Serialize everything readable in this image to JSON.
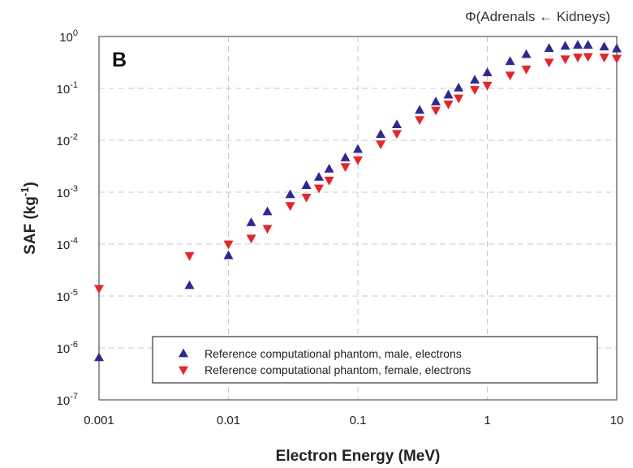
{
  "chart_data": {
    "type": "scatter",
    "title": "Φ(Adrenals ← Kidneys)",
    "panel_label": "B",
    "xlabel": "Electron Energy (MeV)",
    "ylabel": {
      "main": "SAF (kg",
      "sup": "-1",
      "end": ")"
    },
    "x_scale": "log",
    "y_scale": "log",
    "xlim": [
      0.001,
      10
    ],
    "ylim": [
      1e-07,
      1
    ],
    "x_ticks": [
      {
        "value": 0.001,
        "label": "0.001"
      },
      {
        "value": 0.01,
        "label": "0.01"
      },
      {
        "value": 0.1,
        "label": "0.1"
      },
      {
        "value": 1,
        "label": "1"
      },
      {
        "value": 10,
        "label": "10"
      }
    ],
    "y_ticks": [
      {
        "value": 1,
        "base": "10",
        "exp": "0"
      },
      {
        "value": 0.1,
        "base": "10",
        "exp": "-1"
      },
      {
        "value": 0.01,
        "base": "10",
        "exp": "-2"
      },
      {
        "value": 0.001,
        "base": "10",
        "exp": "-3"
      },
      {
        "value": 0.0001,
        "base": "10",
        "exp": "-4"
      },
      {
        "value": 1e-05,
        "base": "10",
        "exp": "-5"
      },
      {
        "value": 1e-06,
        "base": "10",
        "exp": "-6"
      },
      {
        "value": 1e-07,
        "base": "10",
        "exp": "-7"
      }
    ],
    "grid": true,
    "legend_position": "bottom-right",
    "series": [
      {
        "name": "Reference computational phantom, male, electrons",
        "marker": "triangle-up",
        "color": "#2e2a8c",
        "points": [
          [
            0.001,
            6.5e-07
          ],
          [
            0.005,
            1.6e-05
          ],
          [
            0.01,
            6e-05
          ],
          [
            0.015,
            0.00026
          ],
          [
            0.02,
            0.00042
          ],
          [
            0.03,
            0.0009
          ],
          [
            0.04,
            0.00135
          ],
          [
            0.05,
            0.00195
          ],
          [
            0.06,
            0.0028
          ],
          [
            0.08,
            0.0046
          ],
          [
            0.1,
            0.0067
          ],
          [
            0.15,
            0.013
          ],
          [
            0.2,
            0.02
          ],
          [
            0.3,
            0.038
          ],
          [
            0.4,
            0.055
          ],
          [
            0.5,
            0.075
          ],
          [
            0.6,
            0.102
          ],
          [
            0.8,
            0.145
          ],
          [
            1,
            0.2
          ],
          [
            1.5,
            0.33
          ],
          [
            2,
            0.45
          ],
          [
            3,
            0.59
          ],
          [
            4,
            0.65
          ],
          [
            5,
            0.68
          ],
          [
            6,
            0.68
          ],
          [
            8,
            0.63
          ],
          [
            10,
            0.58
          ]
        ]
      },
      {
        "name": "Reference computational phantom, female, electrons",
        "marker": "triangle-down",
        "color": "#e3262b",
        "points": [
          [
            0.001,
            1.4e-05
          ],
          [
            0.005,
            6e-05
          ],
          [
            0.01,
            0.0001
          ],
          [
            0.015,
            0.00013
          ],
          [
            0.02,
            0.0002
          ],
          [
            0.03,
            0.00055
          ],
          [
            0.04,
            0.0008
          ],
          [
            0.05,
            0.0012
          ],
          [
            0.06,
            0.0017
          ],
          [
            0.08,
            0.0031
          ],
          [
            0.1,
            0.0042
          ],
          [
            0.15,
            0.0085
          ],
          [
            0.2,
            0.0135
          ],
          [
            0.3,
            0.025
          ],
          [
            0.4,
            0.038
          ],
          [
            0.5,
            0.05
          ],
          [
            0.6,
            0.065
          ],
          [
            0.8,
            0.095
          ],
          [
            1,
            0.115
          ],
          [
            1.5,
            0.18
          ],
          [
            2,
            0.235
          ],
          [
            3,
            0.32
          ],
          [
            4,
            0.37
          ],
          [
            5,
            0.4
          ],
          [
            6,
            0.41
          ],
          [
            8,
            0.4
          ],
          [
            10,
            0.38
          ]
        ]
      }
    ]
  }
}
